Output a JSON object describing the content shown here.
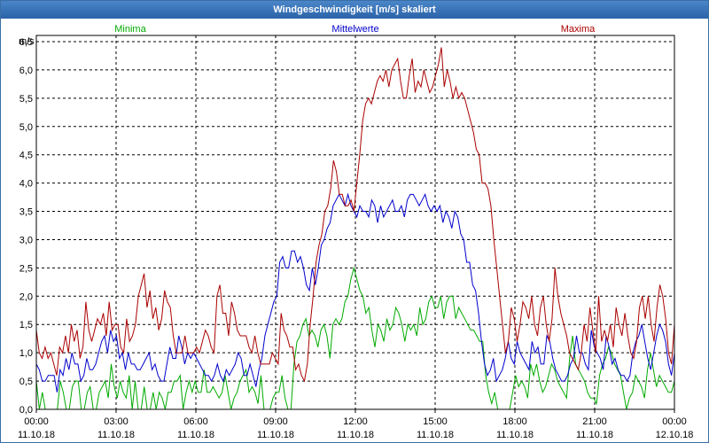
{
  "window": {
    "title": "Windgeschwindigkeit [m/s] skaliert"
  },
  "chart_data": {
    "type": "line",
    "title": "Windgeschwindigkeit [m/s] skaliert",
    "ylabel": "m/s",
    "ylim": [
      0,
      6.5
    ],
    "yticks": [
      "0,0",
      "0,5",
      "1,0",
      "1,5",
      "2,0",
      "2,5",
      "3,0",
      "3,5",
      "4,0",
      "4,5",
      "5,0",
      "5,5",
      "6,0",
      "6,5"
    ],
    "xlim": [
      "11.10.18 00:00",
      "12.10.18 00:00"
    ],
    "x_tick_labels": [
      {
        "time": "00:00",
        "date": "11.10.18"
      },
      {
        "time": "03:00",
        "date": "11.10.18"
      },
      {
        "time": "06:00",
        "date": "11.10.18"
      },
      {
        "time": "09:00",
        "date": "11.10.18"
      },
      {
        "time": "12:00",
        "date": "11.10.18"
      },
      {
        "time": "15:00",
        "date": "11.10.18"
      },
      {
        "time": "18:00",
        "date": "11.10.18"
      },
      {
        "time": "21:00",
        "date": "11.10.18"
      },
      {
        "time": "00:00",
        "date": "12.10.18"
      }
    ],
    "x_step": "10 min",
    "grid": true,
    "legend_position": "top",
    "series": [
      {
        "name": "Minima",
        "color": "#00aa00",
        "values": [
          0.5,
          0.0,
          0.3,
          0.0,
          0.0,
          0.0,
          0.0,
          0.0,
          0.5,
          0.3,
          0.0,
          0.0,
          0.4,
          0.5,
          0.5,
          0.0,
          0.0,
          0.3,
          0.4,
          0.0,
          0.0,
          0.3,
          0.4,
          0.5,
          0.2,
          0.8,
          0.4,
          0.2,
          0.5,
          0.3,
          0.2,
          0.6,
          0.0,
          0.5,
          0.0,
          0.0,
          0.4,
          0.0,
          0.0,
          0.3,
          0.0,
          0.3,
          0.2,
          0.0,
          0.3,
          0.3,
          0.5,
          0.5,
          0.6,
          0.0,
          0.3,
          0.5,
          0.3,
          0.5,
          0.3,
          0.3,
          0.7,
          0.3,
          0.3,
          0.4,
          0.3,
          0.2,
          0.3,
          0.6,
          0.3,
          0.0,
          0.2,
          0.3,
          0.5,
          0.6,
          0.7,
          0.3,
          0.4,
          0.3,
          0.1,
          0.6,
          0.0,
          0.0,
          0.0,
          0.2,
          0.3,
          0.3,
          0.6,
          0.2,
          0.0,
          0.0,
          0.8,
          1.2,
          1.3,
          1.5,
          1.6,
          1.3,
          1.4,
          1.3,
          1.1,
          1.4,
          1.5,
          1.3,
          0.9,
          1.5,
          1.6,
          1.5,
          1.6,
          1.9,
          2.0,
          2.3,
          2.5,
          2.3,
          2.1,
          2.0,
          1.7,
          1.8,
          1.4,
          1.1,
          1.5,
          1.4,
          1.2,
          1.6,
          1.4,
          1.5,
          1.8,
          1.7,
          1.5,
          1.2,
          1.5,
          1.4,
          1.5,
          1.3,
          1.8,
          1.5,
          1.6,
          1.9,
          2.0,
          1.8,
          1.8,
          2.0,
          1.6,
          1.9,
          2.0,
          2.0,
          1.6,
          1.8,
          1.7,
          1.6,
          1.5,
          1.4,
          1.4,
          1.3,
          1.2,
          1.2,
          0.6,
          0.3,
          0.1,
          0.3,
          0.0,
          0.0,
          0.0,
          0.0,
          0.0,
          0.3,
          0.6,
          0.4,
          0.5,
          0.4,
          0.2,
          0.8,
          0.6,
          0.8,
          0.5,
          0.3,
          0.4,
          0.6,
          0.8,
          0.7,
          0.5,
          0.4,
          0.3,
          0.2,
          0.9,
          1.3,
          0.8,
          0.7,
          0.6,
          0.5,
          0.3,
          0.2,
          0.2,
          0.1,
          0.6,
          0.8,
          0.9,
          1.1,
          1.0,
          0.8,
          0.7,
          0.6,
          0.3,
          0.0,
          0.2,
          0.3,
          0.6,
          0.5,
          0.4,
          0.2,
          0.7,
          1.0,
          0.7,
          0.4,
          0.6,
          0.5,
          0.4,
          0.3,
          0.3,
          0.5
        ]
      },
      {
        "name": "Mittelwerte",
        "color": "#0000cc",
        "values": [
          0.8,
          0.7,
          0.5,
          0.5,
          0.6,
          0.6,
          0.6,
          0.3,
          0.7,
          0.6,
          0.9,
          0.7,
          1.0,
          0.8,
          0.8,
          0.5,
          0.6,
          0.9,
          0.7,
          0.7,
          0.8,
          1.0,
          1.2,
          1.3,
          1.0,
          1.4,
          1.2,
          1.3,
          0.9,
          1.0,
          0.7,
          1.0,
          0.8,
          0.8,
          0.7,
          0.7,
          0.8,
          0.9,
          1.0,
          0.7,
          0.8,
          0.6,
          0.5,
          0.5,
          0.8,
          1.1,
          0.9,
          0.9,
          1.3,
          1.1,
          0.8,
          1.0,
          0.9,
          1.0,
          0.9,
          0.8,
          0.7,
          0.6,
          0.6,
          0.5,
          0.6,
          0.8,
          0.6,
          0.5,
          0.7,
          0.6,
          0.7,
          0.8,
          1.0,
          0.9,
          0.6,
          0.6,
          0.8,
          0.6,
          0.4,
          0.7,
          0.9,
          1.3,
          1.5,
          1.7,
          1.9,
          2.0,
          2.6,
          2.7,
          2.5,
          2.5,
          2.8,
          2.8,
          2.6,
          2.7,
          2.5,
          2.2,
          2.1,
          2.5,
          2.2,
          2.5,
          2.9,
          3.0,
          3.2,
          3.3,
          3.6,
          3.7,
          3.8,
          3.7,
          3.6,
          3.8,
          3.6,
          3.5,
          3.4,
          3.6,
          3.5,
          3.5,
          3.4,
          3.7,
          3.6,
          3.3,
          3.6,
          3.4,
          3.5,
          3.6,
          3.7,
          3.5,
          3.5,
          3.6,
          3.4,
          3.7,
          3.8,
          3.8,
          3.7,
          3.6,
          3.7,
          3.8,
          3.6,
          3.5,
          3.6,
          3.5,
          3.6,
          3.3,
          3.5,
          3.4,
          3.2,
          3.5,
          3.4,
          3.1,
          3.0,
          2.6,
          2.6,
          2.2,
          2.1,
          1.7,
          1.2,
          0.8,
          0.6,
          0.7,
          0.9,
          0.5,
          0.6,
          0.7,
          0.9,
          1.2,
          0.9,
          0.8,
          1.2,
          1.0,
          0.9,
          0.8,
          0.7,
          1.2,
          1.0,
          1.1,
          0.8,
          0.8,
          1.3,
          1.2,
          0.9,
          0.7,
          0.6,
          0.5,
          0.5,
          0.6,
          0.8,
          0.9,
          1.3,
          1.0,
          1.0,
          0.8,
          0.7,
          1.4,
          1.1,
          1.0,
          0.9,
          0.7,
          1.3,
          1.1,
          0.8,
          0.9,
          0.7,
          0.6,
          0.6,
          0.5,
          0.6,
          1.0,
          1.2,
          1.3,
          1.5,
          1.2,
          0.9,
          0.7,
          1.0,
          1.3,
          1.5,
          1.4,
          1.2,
          0.8,
          0.6,
          1.0
        ]
      },
      {
        "name": "Maxima",
        "color": "#aa0000",
        "values": [
          1.4,
          1.0,
          0.9,
          1.1,
          0.9,
          1.0,
          0.8,
          0.6,
          1.1,
          1.0,
          1.3,
          1.0,
          1.5,
          1.2,
          1.4,
          0.9,
          1.1,
          1.9,
          1.4,
          1.2,
          1.4,
          1.6,
          1.5,
          1.7,
          1.3,
          1.9,
          1.4,
          1.5,
          1.5,
          1.1,
          1.0,
          1.6,
          1.2,
          1.3,
          1.5,
          2.0,
          2.2,
          2.4,
          1.8,
          2.1,
          1.6,
          1.8,
          1.4,
          1.6,
          2.1,
          1.9,
          1.8,
          1.3,
          1.0,
          1.0,
          1.0,
          1.3,
          1.0,
          1.0,
          1.0,
          1.1,
          1.0,
          1.2,
          1.4,
          1.3,
          1.1,
          1.0,
          2.0,
          2.2,
          1.7,
          1.7,
          1.3,
          1.9,
          1.7,
          1.4,
          1.3,
          1.3,
          1.3,
          1.1,
          1.0,
          1.3,
          1.0,
          0.8,
          0.8,
          0.8,
          0.8,
          1.0,
          0.9,
          0.8,
          1.7,
          1.4,
          1.3,
          1.1,
          1.1,
          0.7,
          0.8,
          0.6,
          0.5,
          0.8,
          1.5,
          2.0,
          2.6,
          2.9,
          3.1,
          3.5,
          3.6,
          3.9,
          4.4,
          4.2,
          3.8,
          3.8,
          3.6,
          3.6,
          3.7,
          3.5,
          4.0,
          4.5,
          5.1,
          5.4,
          5.5,
          5.4,
          5.6,
          5.8,
          5.9,
          5.8,
          6.0,
          5.7,
          6.0,
          6.1,
          6.2,
          5.8,
          5.5,
          5.5,
          5.9,
          6.2,
          5.6,
          5.8,
          5.7,
          6.0,
          5.8,
          5.6,
          5.7,
          5.9,
          6.1,
          6.4,
          5.7,
          6.0,
          5.8,
          5.5,
          5.7,
          5.5,
          5.6,
          5.5,
          5.3,
          5.1,
          4.9,
          4.6,
          4.5,
          4.0,
          4.0,
          3.9,
          3.6,
          3.0,
          2.5,
          2.0,
          1.5,
          1.0,
          1.2,
          1.8,
          1.6,
          1.2,
          1.5,
          1.9,
          1.8,
          1.6,
          2.0,
          1.5,
          1.3,
          1.8,
          2.0,
          1.5,
          1.2,
          1.6,
          2.5,
          2.0,
          1.7,
          1.5,
          1.3,
          1.0,
          0.9,
          0.8,
          0.7,
          1.0,
          1.5,
          1.2,
          1.8,
          1.4,
          1.0,
          2.0,
          1.2,
          1.4,
          1.2,
          1.5,
          1.1,
          1.8,
          1.5,
          1.3,
          1.7,
          1.3,
          1.0,
          0.9,
          1.2,
          1.8,
          2.0,
          1.6,
          2.0,
          1.5,
          1.2,
          1.8,
          2.2,
          2.0,
          1.6,
          1.0,
          0.8,
          1.5
        ]
      }
    ]
  }
}
